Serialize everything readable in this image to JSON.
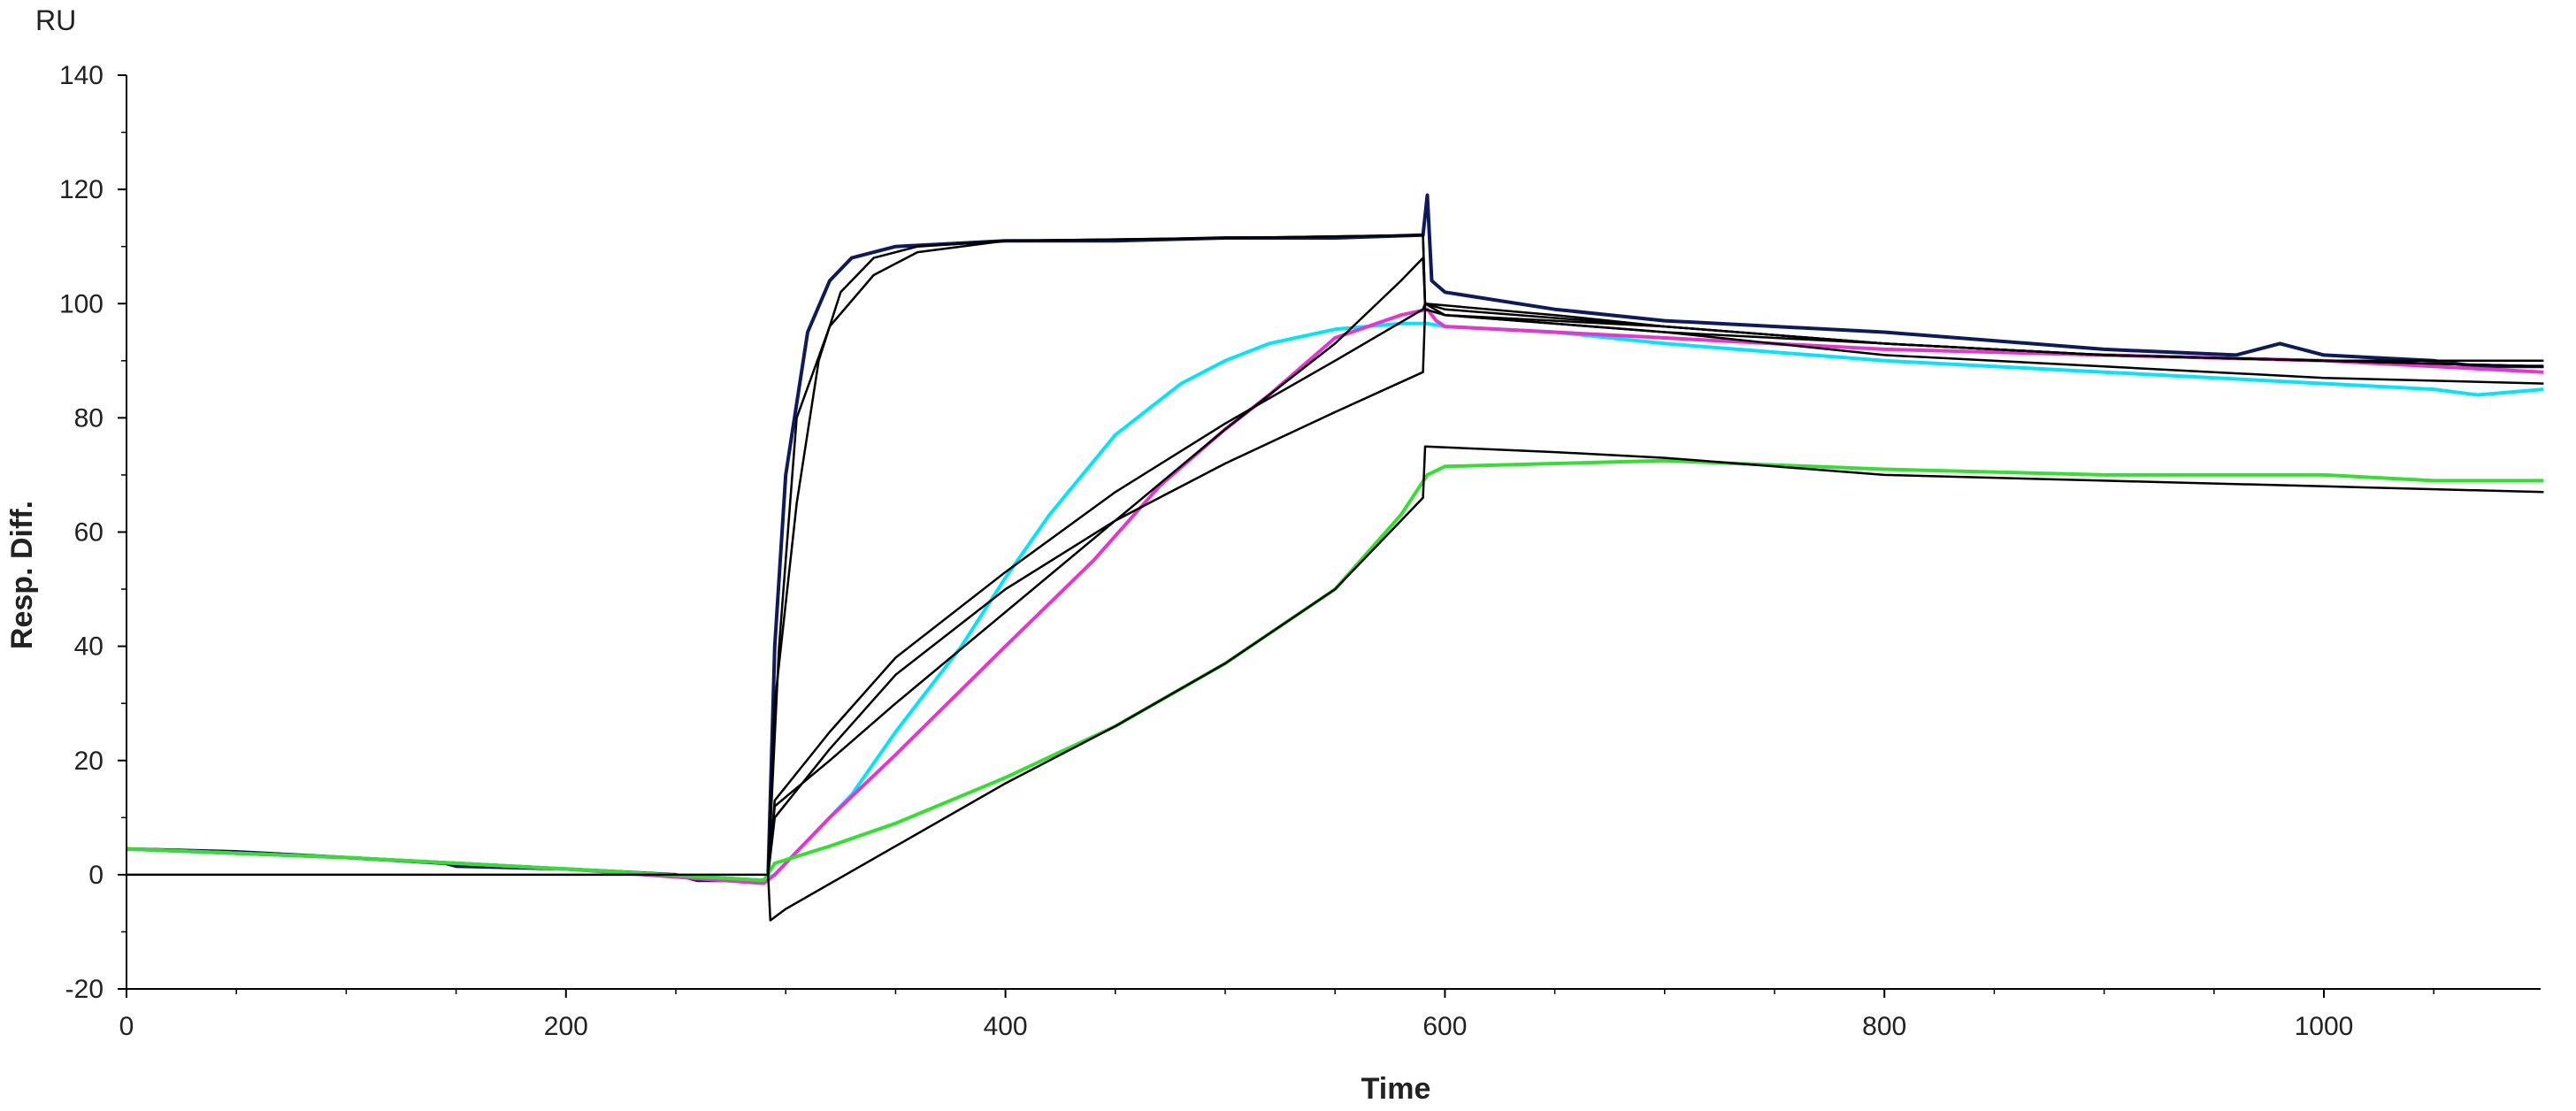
{
  "chart_data": {
    "type": "line",
    "title": "",
    "unit_label": "RU",
    "xlabel": "Time",
    "ylabel": "Resp. Diff.",
    "xlim": [
      0,
      1100
    ],
    "ylim": [
      -20,
      140
    ],
    "xticks": [
      0,
      200,
      400,
      600,
      800,
      1000
    ],
    "yticks": [
      -20,
      0,
      20,
      40,
      60,
      80,
      100,
      120,
      140
    ],
    "grid": false,
    "legend": "none",
    "series": [
      {
        "color": "#0d1b5e",
        "points": [
          [
            0,
            4.5
          ],
          [
            50,
            4
          ],
          [
            100,
            3
          ],
          [
            145,
            2
          ],
          [
            150,
            1.5
          ],
          [
            200,
            1
          ],
          [
            250,
            0
          ],
          [
            260,
            -1
          ],
          [
            290,
            -1
          ],
          [
            292,
            0
          ],
          [
            295,
            40
          ],
          [
            300,
            70
          ],
          [
            310,
            95
          ],
          [
            320,
            104
          ],
          [
            330,
            108
          ],
          [
            350,
            110
          ],
          [
            400,
            111
          ],
          [
            450,
            111
          ],
          [
            500,
            111.5
          ],
          [
            550,
            111.5
          ],
          [
            590,
            112
          ],
          [
            592,
            119
          ],
          [
            594,
            104
          ],
          [
            600,
            102
          ],
          [
            650,
            99
          ],
          [
            700,
            97
          ],
          [
            800,
            95
          ],
          [
            900,
            92
          ],
          [
            960,
            91
          ],
          [
            980,
            93
          ],
          [
            1000,
            91
          ],
          [
            1050,
            90
          ],
          [
            1070,
            89
          ],
          [
            1100,
            89
          ]
        ]
      },
      {
        "color": "#00e5ff",
        "points": [
          [
            0,
            4.5
          ],
          [
            100,
            3
          ],
          [
            200,
            1
          ],
          [
            290,
            -1
          ],
          [
            295,
            0
          ],
          [
            310,
            6
          ],
          [
            330,
            14
          ],
          [
            350,
            25
          ],
          [
            380,
            40
          ],
          [
            400,
            52
          ],
          [
            420,
            63
          ],
          [
            450,
            77
          ],
          [
            480,
            86
          ],
          [
            500,
            90
          ],
          [
            520,
            93
          ],
          [
            550,
            95.5
          ],
          [
            580,
            96.5
          ],
          [
            592,
            96.5
          ],
          [
            600,
            96
          ],
          [
            650,
            95
          ],
          [
            700,
            93
          ],
          [
            800,
            90
          ],
          [
            900,
            88
          ],
          [
            1000,
            86
          ],
          [
            1050,
            85
          ],
          [
            1070,
            84
          ],
          [
            1100,
            85
          ]
        ]
      },
      {
        "color": "#e834d0",
        "points": [
          [
            0,
            4.5
          ],
          [
            100,
            3
          ],
          [
            200,
            1
          ],
          [
            290,
            -1.5
          ],
          [
            295,
            0
          ],
          [
            320,
            10
          ],
          [
            350,
            21
          ],
          [
            400,
            40
          ],
          [
            440,
            55
          ],
          [
            470,
            68
          ],
          [
            500,
            78
          ],
          [
            520,
            84
          ],
          [
            550,
            94
          ],
          [
            580,
            98
          ],
          [
            592,
            99
          ],
          [
            596,
            97
          ],
          [
            600,
            96
          ],
          [
            650,
            95
          ],
          [
            700,
            94
          ],
          [
            800,
            92
          ],
          [
            900,
            91
          ],
          [
            1000,
            90
          ],
          [
            1100,
            88
          ]
        ]
      },
      {
        "color": "#33e030",
        "points": [
          [
            0,
            4.5
          ],
          [
            100,
            3
          ],
          [
            200,
            1
          ],
          [
            290,
            -1
          ],
          [
            295,
            2
          ],
          [
            320,
            5
          ],
          [
            350,
            9
          ],
          [
            400,
            17
          ],
          [
            450,
            26
          ],
          [
            500,
            37
          ],
          [
            550,
            50
          ],
          [
            580,
            63
          ],
          [
            592,
            70
          ],
          [
            600,
            71.5
          ],
          [
            650,
            72
          ],
          [
            700,
            72.5
          ],
          [
            800,
            71
          ],
          [
            900,
            70
          ],
          [
            1000,
            70
          ],
          [
            1050,
            69
          ],
          [
            1100,
            69
          ]
        ]
      },
      {
        "color": "#000000",
        "points": [
          [
            0,
            0
          ],
          [
            292,
            0
          ],
          [
            293,
            -8
          ],
          [
            300,
            -6
          ],
          [
            350,
            5
          ],
          [
            400,
            16
          ],
          [
            450,
            26
          ],
          [
            500,
            37
          ],
          [
            550,
            50
          ],
          [
            590,
            66
          ],
          [
            591,
            75
          ],
          [
            650,
            74
          ],
          [
            700,
            73
          ],
          [
            800,
            70
          ],
          [
            900,
            69
          ],
          [
            1000,
            68
          ],
          [
            1100,
            67
          ]
        ]
      },
      {
        "color": "#000000",
        "points": [
          [
            292,
            0
          ],
          [
            295,
            10
          ],
          [
            320,
            22
          ],
          [
            350,
            35
          ],
          [
            400,
            50
          ],
          [
            450,
            62
          ],
          [
            500,
            72
          ],
          [
            550,
            81
          ],
          [
            590,
            88
          ],
          [
            591,
            99
          ],
          [
            600,
            98
          ],
          [
            700,
            95
          ],
          [
            800,
            91
          ],
          [
            900,
            89
          ],
          [
            1000,
            87
          ],
          [
            1100,
            86
          ]
        ]
      },
      {
        "color": "#000000",
        "points": [
          [
            292,
            0
          ],
          [
            295,
            13
          ],
          [
            320,
            25
          ],
          [
            350,
            38
          ],
          [
            400,
            53
          ],
          [
            450,
            67
          ],
          [
            500,
            79
          ],
          [
            550,
            90
          ],
          [
            590,
            99
          ],
          [
            591,
            100
          ],
          [
            650,
            98
          ],
          [
            700,
            96
          ],
          [
            800,
            93
          ],
          [
            900,
            91
          ],
          [
            1000,
            90
          ],
          [
            1100,
            89
          ]
        ]
      },
      {
        "color": "#000000",
        "points": [
          [
            292,
            0
          ],
          [
            295,
            30
          ],
          [
            305,
            65
          ],
          [
            315,
            90
          ],
          [
            325,
            102
          ],
          [
            340,
            108
          ],
          [
            360,
            110
          ],
          [
            400,
            111
          ],
          [
            500,
            111.5
          ],
          [
            590,
            112
          ],
          [
            591,
            99
          ],
          [
            600,
            98
          ],
          [
            700,
            96
          ],
          [
            800,
            93
          ],
          [
            900,
            91
          ],
          [
            1000,
            90
          ],
          [
            1100,
            90
          ]
        ]
      },
      {
        "color": "#000000",
        "points": [
          [
            292,
            0
          ],
          [
            297,
            40
          ],
          [
            305,
            80
          ],
          [
            320,
            96
          ],
          [
            340,
            105
          ],
          [
            360,
            109
          ],
          [
            400,
            111
          ],
          [
            500,
            111.5
          ],
          [
            590,
            112
          ],
          [
            591,
            100
          ],
          [
            600,
            99
          ],
          [
            700,
            96
          ],
          [
            800,
            93
          ],
          [
            900,
            91
          ],
          [
            1000,
            90
          ],
          [
            1100,
            89
          ]
        ]
      },
      {
        "color": "#000000",
        "points": [
          [
            292,
            0
          ],
          [
            295,
            12
          ],
          [
            320,
            20
          ],
          [
            350,
            30
          ],
          [
            400,
            46
          ],
          [
            450,
            62
          ],
          [
            500,
            78
          ],
          [
            550,
            93
          ],
          [
            580,
            104
          ],
          [
            590,
            108
          ],
          [
            591,
            100
          ],
          [
            600,
            98
          ],
          [
            700,
            95
          ],
          [
            800,
            93
          ],
          [
            900,
            91
          ],
          [
            1000,
            90
          ],
          [
            1100,
            89
          ]
        ]
      }
    ]
  }
}
